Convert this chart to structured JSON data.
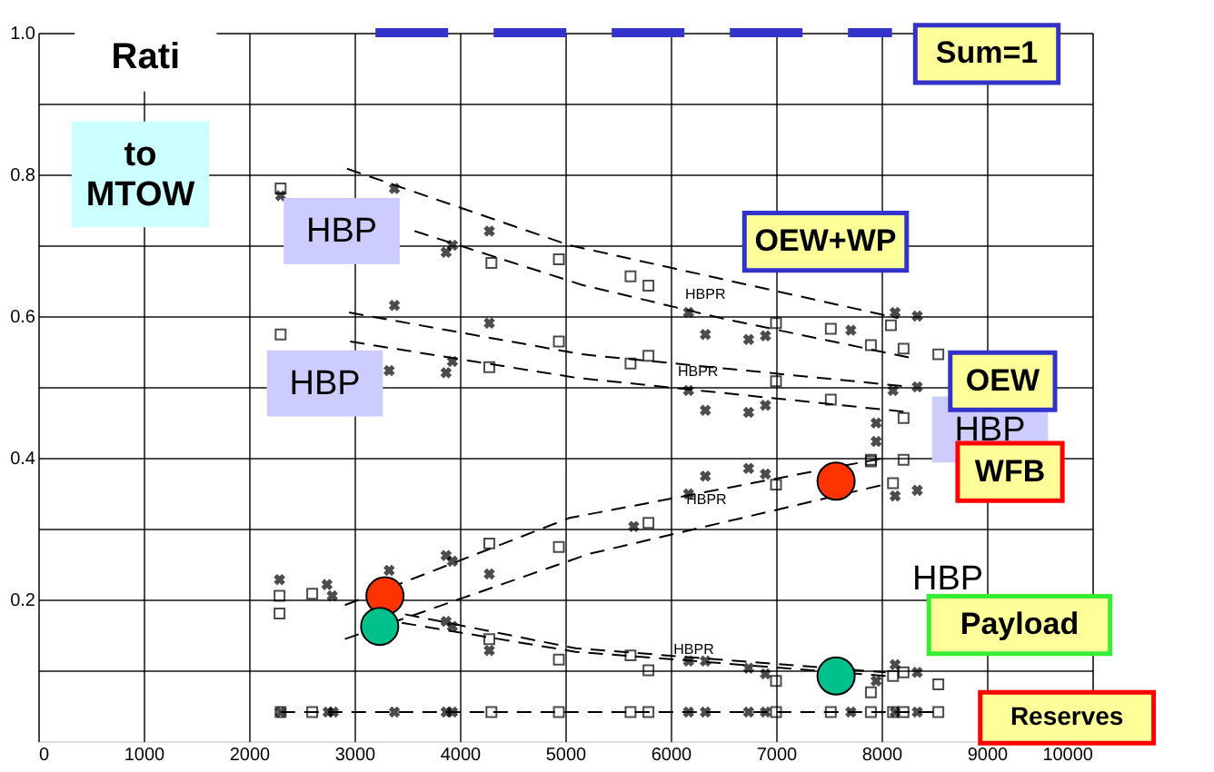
{
  "chart_data": {
    "type": "scatter",
    "xlim": [
      0,
      10000
    ],
    "ylim": [
      0,
      1
    ],
    "xticks": [
      0,
      1000,
      2000,
      3000,
      4000,
      5000,
      6000,
      7000,
      8000,
      9000,
      10000
    ],
    "yticks": [
      {
        "value": 0.1,
        "label": null
      },
      0.2,
      {
        "value": 0.3,
        "label": null
      },
      0.4,
      {
        "value": 0.5,
        "label": null
      },
      0.6,
      {
        "value": 0.7,
        "label": null
      },
      0.8,
      {
        "value": 0.9,
        "label": null
      },
      {
        "value": 1,
        "label": "1.0"
      }
    ],
    "grid": true,
    "series": [
      {
        "marker": "cross",
        "color": "#000000",
        "x": [
          2300,
          3380,
          3870,
          3930,
          4280,
          6170,
          6330,
          6740,
          6900,
          7710,
          8130,
          8340,
          3330,
          3380,
          3870,
          3930,
          4280,
          6170,
          6330,
          6740,
          6900,
          7950,
          7950,
          8110,
          8340,
          2290,
          2740,
          2790,
          3330,
          3870,
          3930,
          4280,
          5650,
          6170,
          6330,
          6740,
          6900,
          8130,
          8340,
          3870,
          3930,
          4280,
          6170,
          6330,
          6740,
          6900,
          7950,
          8130,
          8340,
          2300,
          2750,
          2800,
          3380,
          3870,
          3930,
          6170,
          6330,
          6740,
          6900,
          7710,
          8130,
          8340
        ],
        "values": [
          0.77,
          0.78,
          0.69,
          0.7,
          0.72,
          0.605,
          0.574,
          0.567,
          0.572,
          0.58,
          0.605,
          0.6,
          0.523,
          0.615,
          0.52,
          0.536,
          0.59,
          0.495,
          0.467,
          0.464,
          0.474,
          0.449,
          0.423,
          0.495,
          0.5,
          0.228,
          0.221,
          0.205,
          0.241,
          0.262,
          0.254,
          0.236,
          0.303,
          0.349,
          0.374,
          0.385,
          0.377,
          0.346,
          0.354,
          0.169,
          0.162,
          0.128,
          0.113,
          0.113,
          0.103,
          0.095,
          0.085,
          0.108,
          0.097,
          0.041,
          0.041,
          0.041,
          0.041,
          0.041,
          0.041,
          0.041,
          0.041,
          0.041,
          0.041,
          0.041,
          0.041,
          0.041
        ]
      },
      {
        "marker": "square",
        "color": "#000000",
        "x": [
          2300,
          4300,
          4940,
          5620,
          5790,
          7000,
          7520,
          7900,
          8210,
          8090,
          8540,
          2300,
          2600,
          4280,
          4940,
          5620,
          5790,
          7000,
          7520,
          7900,
          8210,
          2290,
          2290,
          2600,
          4280,
          4940,
          5790,
          7000,
          7900,
          8210,
          8110,
          4280,
          4940,
          5620,
          5790,
          7000,
          7900,
          8110,
          8210,
          8540,
          2300,
          2600,
          4300,
          4940,
          5620,
          5790,
          7000,
          7520,
          7900,
          8110,
          8210,
          8540
        ],
        "values": [
          0.78,
          0.675,
          0.68,
          0.656,
          0.643,
          0.59,
          0.582,
          0.559,
          0.554,
          0.587,
          0.546,
          0.574,
          null,
          0.528,
          0.564,
          0.533,
          0.544,
          0.508,
          0.482,
          0.397,
          0.456,
          0.205,
          0.18,
          0.208,
          0.279,
          0.274,
          0.308,
          0.362,
          0.395,
          0.397,
          0.364,
          0.144,
          0.115,
          0.121,
          0.1,
          0.085,
          0.069,
          0.092,
          0.097,
          0.08,
          0.041,
          0.041,
          0.041,
          0.041,
          0.041,
          0.041,
          0.041,
          0.041,
          0.041,
          0.041,
          0.041,
          0.041
        ]
      },
      {
        "type": "line",
        "line_style": "dashed",
        "color": "#000000",
        "x": [
          2930,
          5040,
          8160
        ],
        "values": [
          0.808,
          0.7,
          0.597
        ]
      },
      {
        "type": "line",
        "line_style": "dashed",
        "color": "#000000",
        "x": [
          3570,
          5160,
          6480,
          8280
        ],
        "values": [
          0.72,
          0.644,
          0.597,
          0.541
        ]
      },
      {
        "type": "line",
        "line_style": "dashed",
        "color": "#000000",
        "x": [
          2950,
          5160,
          8280
        ],
        "values": [
          0.605,
          0.546,
          0.5
        ]
      },
      {
        "type": "line",
        "line_style": "dashed",
        "color": "#000000",
        "x": [
          2960,
          5100,
          8280
        ],
        "values": [
          0.564,
          0.513,
          0.464
        ]
      },
      {
        "type": "line",
        "line_style": "dashed",
        "color": "#000000",
        "x": [
          2910,
          5040,
          8040
        ],
        "values": [
          0.192,
          0.315,
          0.4
        ]
      },
      {
        "type": "line",
        "line_style": "dashed",
        "color": "#000000",
        "x": [
          2910,
          5220,
          8020
        ],
        "values": [
          0.144,
          0.264,
          0.362
        ]
      },
      {
        "type": "line",
        "line_style": "dashed",
        "color": "#000000",
        "x": [
          3480,
          5100,
          8040
        ],
        "values": [
          0.179,
          0.131,
          0.097
        ]
      },
      {
        "type": "line",
        "line_style": "dashed",
        "color": "#000000",
        "x": [
          3450,
          5100,
          8040
        ],
        "values": [
          0.167,
          0.126,
          0.092
        ]
      },
      {
        "type": "line",
        "line_style": "dashed",
        "color": "#000000",
        "x": [
          2300,
          8540
        ],
        "values": [
          0.041,
          0.041
        ]
      },
      {
        "type": "line",
        "line_style": "dashed",
        "color": "#3333cc",
        "x": [
          3200,
          8100
        ],
        "values": [
          1,
          1
        ]
      },
      {
        "marker": "circle",
        "color": "#ff3300",
        "x": [
          3290,
          7570
        ],
        "values": [
          0.205,
          0.367
        ]
      },
      {
        "marker": "circle",
        "color": "#00c08b",
        "x": [
          3240,
          7570
        ],
        "values": [
          0.162,
          0.092
        ]
      }
    ],
    "annotations": [
      "Rati",
      "to MTOW",
      "HBP",
      "HBP",
      "HBP",
      "HBP",
      "HBPR",
      "HBPR",
      "HBPR",
      "HBPR",
      "Sum=1",
      "OEW+WP",
      "OEW",
      "WFB",
      "Payload",
      "Reserves"
    ]
  }
}
